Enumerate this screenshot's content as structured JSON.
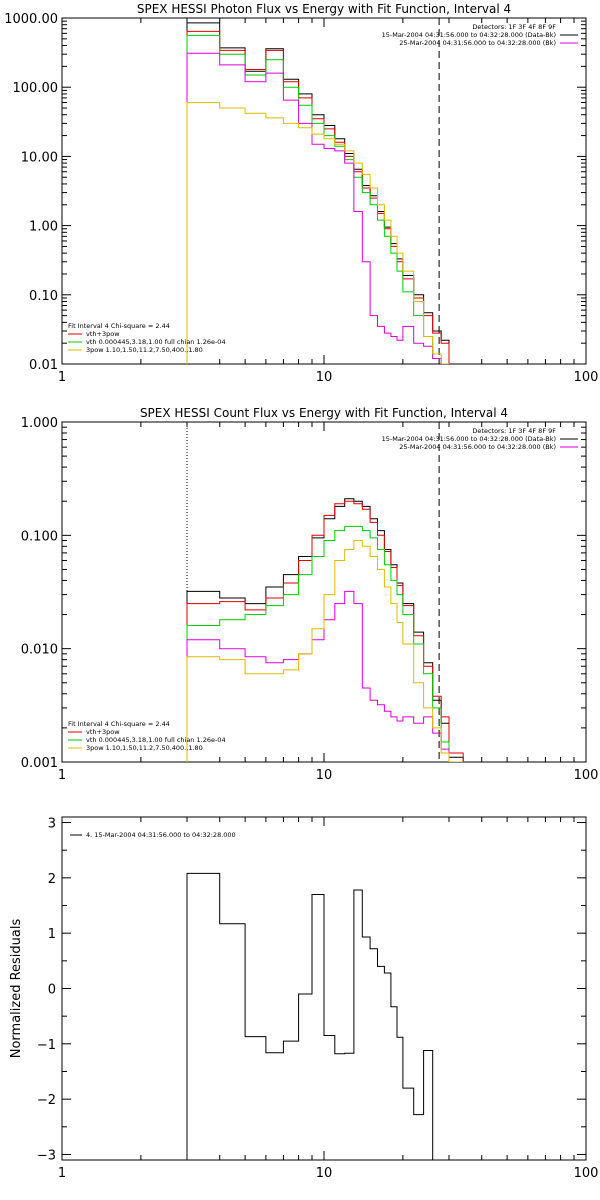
{
  "chart_data": [
    {
      "type": "line",
      "title": "SPEX HESSI Photon Flux vs Energy with Fit Function, Interval 4",
      "xscale": "log",
      "yscale": "log",
      "xlim": [
        1,
        100
      ],
      "ylim": [
        0.01,
        1000
      ],
      "x_ticks": [
        "1",
        "10",
        "100"
      ],
      "y_ticks": [
        "0.01",
        "0.10",
        "1.00",
        "10.00",
        "100.00",
        "1000.00"
      ],
      "header_lines": [
        "Detectors: 1F 3F 4F 8F 9F",
        "15-Mar-2004 04:31:56.000 to 04:32:28.000 (Data-Bk)",
        "25-Mar-2004 04:31:56.000 to 04:32:28.000 (Bk)"
      ],
      "fit_lines": [
        "Fit Interval 4   Chi-square = 2.44",
        "vth+3pow",
        "vth 0.000445,3.18,1.00   full chian 1.26e-04",
        "3pow 1.10,1.50,11.2,7.50,400.,1.80"
      ],
      "edges": [
        3.0,
        3.5,
        4.0,
        5.0,
        6.0,
        7.0,
        8.0,
        9.0,
        10.0,
        11.0,
        12.0,
        13.0,
        14.0,
        15.0,
        16.0,
        17.0,
        18.0,
        19.0,
        20.0,
        22.0,
        24.0,
        26.0,
        28.0,
        30.0
      ],
      "dotted_x": 3.0,
      "dashed_x": 27.5,
      "series": [
        {
          "color": "#000000",
          "values": [
            850,
            850,
            370,
            170,
            360,
            130,
            80,
            40,
            28,
            18,
            11,
            6.5,
            3.8,
            2.7,
            1.6,
            0.95,
            0.55,
            0.33,
            0.19,
            0.1,
            0.055,
            0.03,
            0.022
          ]
        },
        {
          "color": "#e00000",
          "values": [
            640,
            640,
            340,
            180,
            340,
            120,
            70,
            35,
            25,
            16,
            10,
            6.0,
            3.5,
            2.5,
            1.5,
            0.9,
            0.5,
            0.3,
            0.17,
            0.09,
            0.05,
            0.028,
            0.02
          ]
        },
        {
          "color": "#00cc00",
          "values": [
            560,
            560,
            300,
            150,
            250,
            100,
            55,
            30,
            20,
            14,
            9.0,
            5.0,
            3.0,
            2.0,
            1.2,
            0.7,
            0.4,
            0.22,
            0.11,
            0.05,
            0.025,
            0.012,
            0.008
          ]
        },
        {
          "color": "#dd00dd",
          "values": [
            310,
            310,
            210,
            120,
            160,
            65,
            30,
            15,
            13,
            12,
            8.0,
            1.6,
            0.3,
            0.05,
            0.035,
            0.028,
            0.025,
            0.022,
            0.035,
            0.02,
            0.018,
            0.012,
            0.009
          ]
        },
        {
          "color": "#ddbb00",
          "values": [
            60,
            60,
            50,
            42,
            36,
            30,
            26,
            21,
            18,
            15,
            12,
            8.0,
            5.5,
            3.5,
            2.0,
            1.2,
            0.7,
            0.4,
            0.22,
            0.08,
            0.025,
            0.014,
            0.008
          ]
        }
      ]
    },
    {
      "type": "line",
      "title": "SPEX HESSI Count Flux vs Energy with Fit Function, Interval 4",
      "xscale": "log",
      "yscale": "log",
      "xlim": [
        1,
        100
      ],
      "ylim": [
        0.001,
        1
      ],
      "x_ticks": [
        "1",
        "10",
        "100"
      ],
      "y_ticks": [
        "0.001",
        "0.010",
        "0.100",
        "1.000"
      ],
      "header_lines": [
        "Detectors: 1F 3F 4F 8F 9F",
        "15-Mar-2004 04:31:56.000 to 04:32:28.000 (Data-Bk)",
        "25-Mar-2004 04:31:56.000 to 04:32:28.000 (Bk)"
      ],
      "fit_lines": [
        "Fit Interval 4   Chi-square = 2.44",
        "vth+3pow",
        "vth 0.000445,3.18,1.00   full chian 1.26e-04",
        "3pow 1.10,1.50,11.2,7.50,400.,1.80"
      ],
      "edges": [
        3.0,
        3.5,
        4.0,
        5.0,
        6.0,
        7.0,
        8.0,
        9.0,
        10.0,
        11.0,
        12.0,
        13.0,
        14.0,
        15.0,
        16.0,
        17.0,
        18.0,
        19.0,
        20.0,
        22.0,
        24.0,
        26.0,
        28.0,
        30.0,
        34.0
      ],
      "dotted_x": 3.0,
      "dashed_x": 27.5,
      "series": [
        {
          "color": "#000000",
          "values": [
            0.032,
            0.032,
            0.028,
            0.025,
            0.035,
            0.045,
            0.065,
            0.095,
            0.14,
            0.18,
            0.21,
            0.2,
            0.18,
            0.14,
            0.11,
            0.075,
            0.055,
            0.038,
            0.025,
            0.014,
            0.0075,
            0.0035,
            0.0022,
            0.0011
          ]
        },
        {
          "color": "#e00000",
          "values": [
            0.025,
            0.025,
            0.026,
            0.022,
            0.028,
            0.038,
            0.06,
            0.1,
            0.15,
            0.19,
            0.2,
            0.19,
            0.17,
            0.13,
            0.1,
            0.072,
            0.052,
            0.036,
            0.024,
            0.013,
            0.007,
            0.0038,
            0.0025,
            0.0012
          ]
        },
        {
          "color": "#00cc00",
          "values": [
            0.016,
            0.016,
            0.018,
            0.02,
            0.024,
            0.03,
            0.045,
            0.065,
            0.09,
            0.11,
            0.12,
            0.12,
            0.11,
            0.095,
            0.075,
            0.055,
            0.04,
            0.03,
            0.02,
            0.011,
            0.006,
            0.003,
            0.0015,
            0.001
          ]
        },
        {
          "color": "#dd00dd",
          "values": [
            0.012,
            0.012,
            0.01,
            0.0085,
            0.0075,
            0.008,
            0.009,
            0.012,
            0.018,
            0.025,
            0.032,
            0.025,
            0.0045,
            0.0035,
            0.0032,
            0.0028,
            0.0025,
            0.0023,
            0.0025,
            0.0022,
            0.0025,
            0.0018,
            0.0013,
            0.001
          ]
        },
        {
          "color": "#ddbb00",
          "values": [
            0.0085,
            0.0085,
            0.008,
            0.006,
            0.006,
            0.0065,
            0.009,
            0.015,
            0.03,
            0.06,
            0.075,
            0.09,
            0.08,
            0.065,
            0.05,
            0.035,
            0.025,
            0.017,
            0.011,
            0.005,
            0.003,
            0.002,
            0.0012,
            0.001
          ]
        }
      ]
    },
    {
      "type": "line",
      "title": "",
      "ylabel": "Normalized Residuals",
      "xscale": "log",
      "yscale": "linear",
      "xlim": [
        1,
        100
      ],
      "ylim": [
        -3.1,
        3.1
      ],
      "x_ticks": [
        "1",
        "10",
        "100"
      ],
      "y_ticks": [
        "−3",
        "−2",
        "−1",
        "0",
        "1",
        "2",
        "3"
      ],
      "legend": "4. 15-Mar-2004 04:31:56.000 to 04:32:28.000",
      "edges": [
        3.0,
        3.5,
        4.0,
        5.0,
        6.0,
        7.0,
        8.0,
        9.0,
        10.0,
        11.0,
        12.0,
        13.0,
        14.0,
        15.0,
        16.0,
        17.0,
        18.0,
        19.0,
        20.0,
        22.0,
        24.0,
        26.0,
        28.0
      ],
      "series": [
        {
          "color": "#000000",
          "values": [
            2.08,
            2.08,
            1.17,
            -0.87,
            -1.16,
            -0.95,
            -0.1,
            1.7,
            -0.85,
            -1.18,
            -1.17,
            1.78,
            0.93,
            0.72,
            0.4,
            0.28,
            -0.33,
            -0.88,
            -1.8,
            -2.28,
            -1.12,
            -3.1
          ]
        }
      ]
    }
  ]
}
